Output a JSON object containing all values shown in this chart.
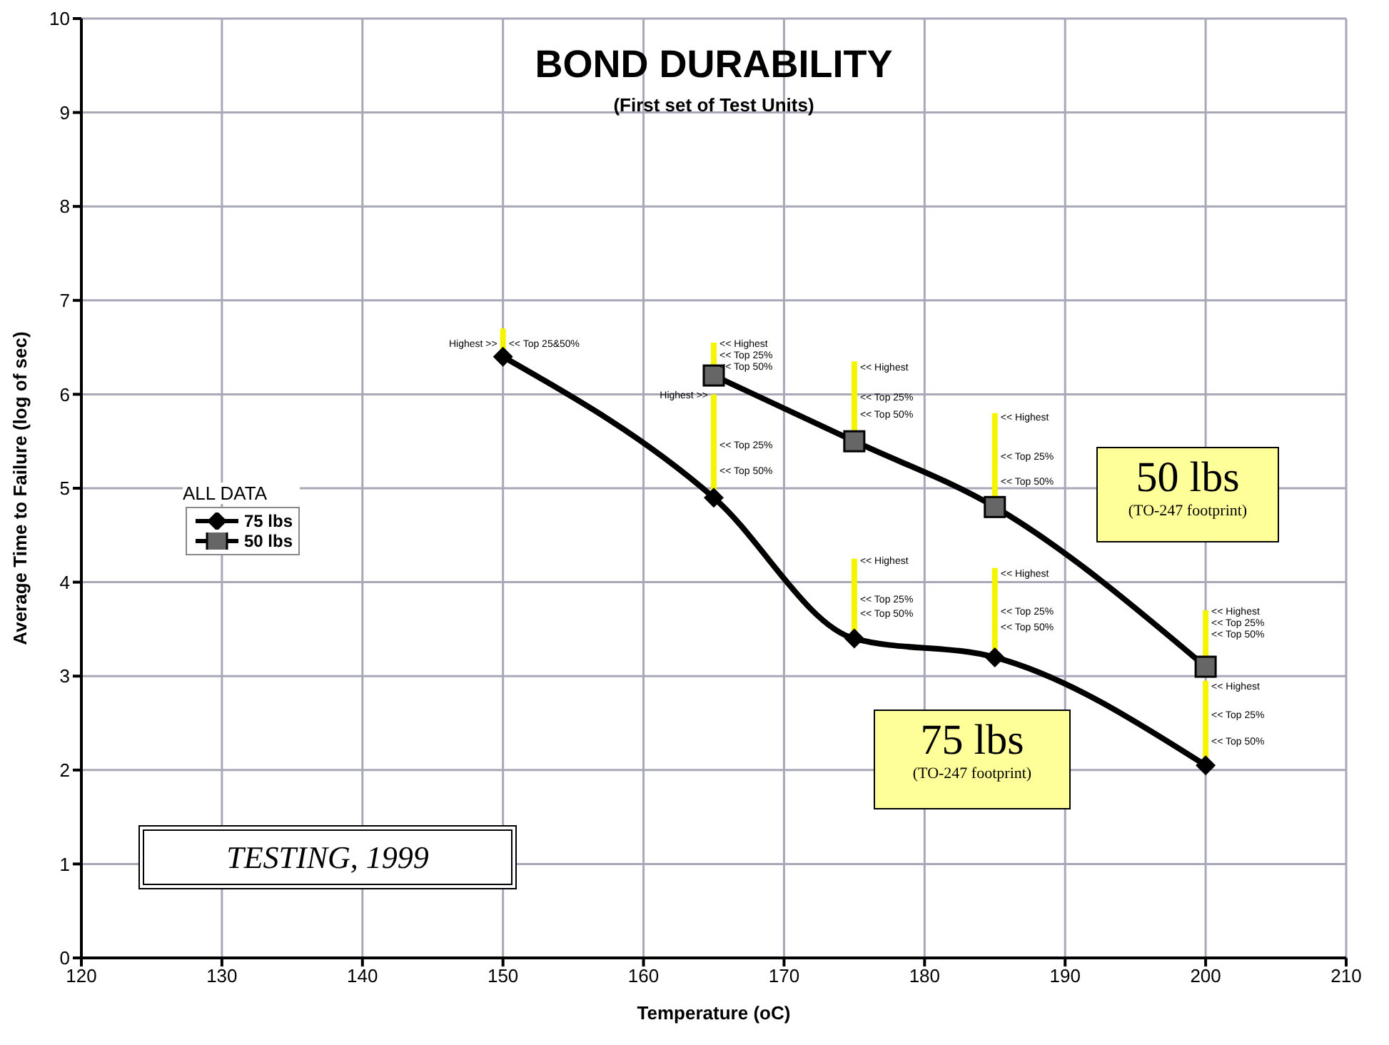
{
  "chart_data": {
    "type": "line",
    "title": "BOND DURABILITY",
    "subtitle": "(First set of Test Units)",
    "xlabel": "Temperature (oC)",
    "ylabel": "Average Time to Failure (log of sec)",
    "legend_title": "ALL DATA",
    "legend": "left",
    "grid": true,
    "line_style": "solid",
    "xlim": [
      120,
      210
    ],
    "xticks": [
      120,
      130,
      140,
      150,
      160,
      170,
      180,
      190,
      200,
      210
    ],
    "ylim": [
      0,
      10
    ],
    "yticks": [
      0,
      1,
      2,
      3,
      4,
      5,
      6,
      7,
      8,
      9,
      10
    ],
    "series": [
      {
        "name": "75 lbs",
        "color": "#000000",
        "marker": "diamond",
        "x": [
          150,
          165,
          175,
          185,
          200
        ],
        "values": [
          6.4,
          4.9,
          3.4,
          3.2,
          2.05
        ],
        "errors": [
          [
            6.4,
            6.7
          ],
          [
            4.9,
            6.0
          ],
          [
            3.4,
            4.25
          ],
          [
            3.2,
            4.15
          ],
          [
            2.05,
            2.95
          ]
        ]
      },
      {
        "name": "50 lbs",
        "color": "#000000",
        "marker": "square",
        "x": [
          165,
          175,
          185,
          200
        ],
        "values": [
          6.2,
          5.5,
          4.8,
          3.1
        ],
        "errors": [
          [
            6.2,
            6.55
          ],
          [
            5.5,
            6.35
          ],
          [
            4.8,
            5.8
          ],
          [
            3.1,
            3.7
          ]
        ]
      }
    ],
    "annotations": [
      {
        "text": "Highest >>",
        "x": 150,
        "y": 6.55
      },
      {
        "text": "<< Top 25&50%",
        "x": 150,
        "y": 6.55
      },
      {
        "text": "<< Highest",
        "x": 165,
        "y": 6.55
      },
      {
        "text": "<< Top 25%",
        "x": 165,
        "y": 6.43
      },
      {
        "text": "<< Top 50%",
        "x": 165,
        "y": 6.31
      },
      {
        "text": "Highest >>",
        "x": 165,
        "y": 6.0
      },
      {
        "text": "<< Top 25%",
        "x": 165,
        "y": 5.47
      },
      {
        "text": "<< Top 50%",
        "x": 165,
        "y": 5.2
      },
      {
        "text": "<< Highest",
        "x": 175,
        "y": 6.3
      },
      {
        "text": "<< Top 25%",
        "x": 175,
        "y": 5.98
      },
      {
        "text": "<< Top 50%",
        "x": 175,
        "y": 5.8
      },
      {
        "text": "<< Highest",
        "x": 185,
        "y": 5.77
      },
      {
        "text": "<< Top 25%",
        "x": 185,
        "y": 5.35
      },
      {
        "text": "<< Top 50%",
        "x": 185,
        "y": 5.08
      },
      {
        "text": "<< Highest",
        "x": 175,
        "y": 4.24
      },
      {
        "text": "<< Top 25%",
        "x": 175,
        "y": 3.83
      },
      {
        "text": "<< Top 50%",
        "x": 175,
        "y": 3.68
      },
      {
        "text": "<< Highest",
        "x": 185,
        "y": 4.1
      },
      {
        "text": "<< Top 25%",
        "x": 185,
        "y": 3.7
      },
      {
        "text": "<< Top 50%",
        "x": 185,
        "y": 3.53
      },
      {
        "text": "<< Highest",
        "x": 200,
        "y": 3.7
      },
      {
        "text": "<< Top 25%",
        "x": 200,
        "y": 3.58
      },
      {
        "text": "<< Top 50%",
        "x": 200,
        "y": 3.46
      },
      {
        "text": "<< Highest",
        "x": 200,
        "y": 2.9
      },
      {
        "text": "<< Top 25%",
        "x": 200,
        "y": 2.6
      },
      {
        "text": "<< Top 50%",
        "x": 200,
        "y": 2.32
      },
      "50 lbs",
      "(TO-247 footprint)",
      "75 lbs",
      "(TO-247 footprint)",
      "TESTING, 1999"
    ]
  }
}
